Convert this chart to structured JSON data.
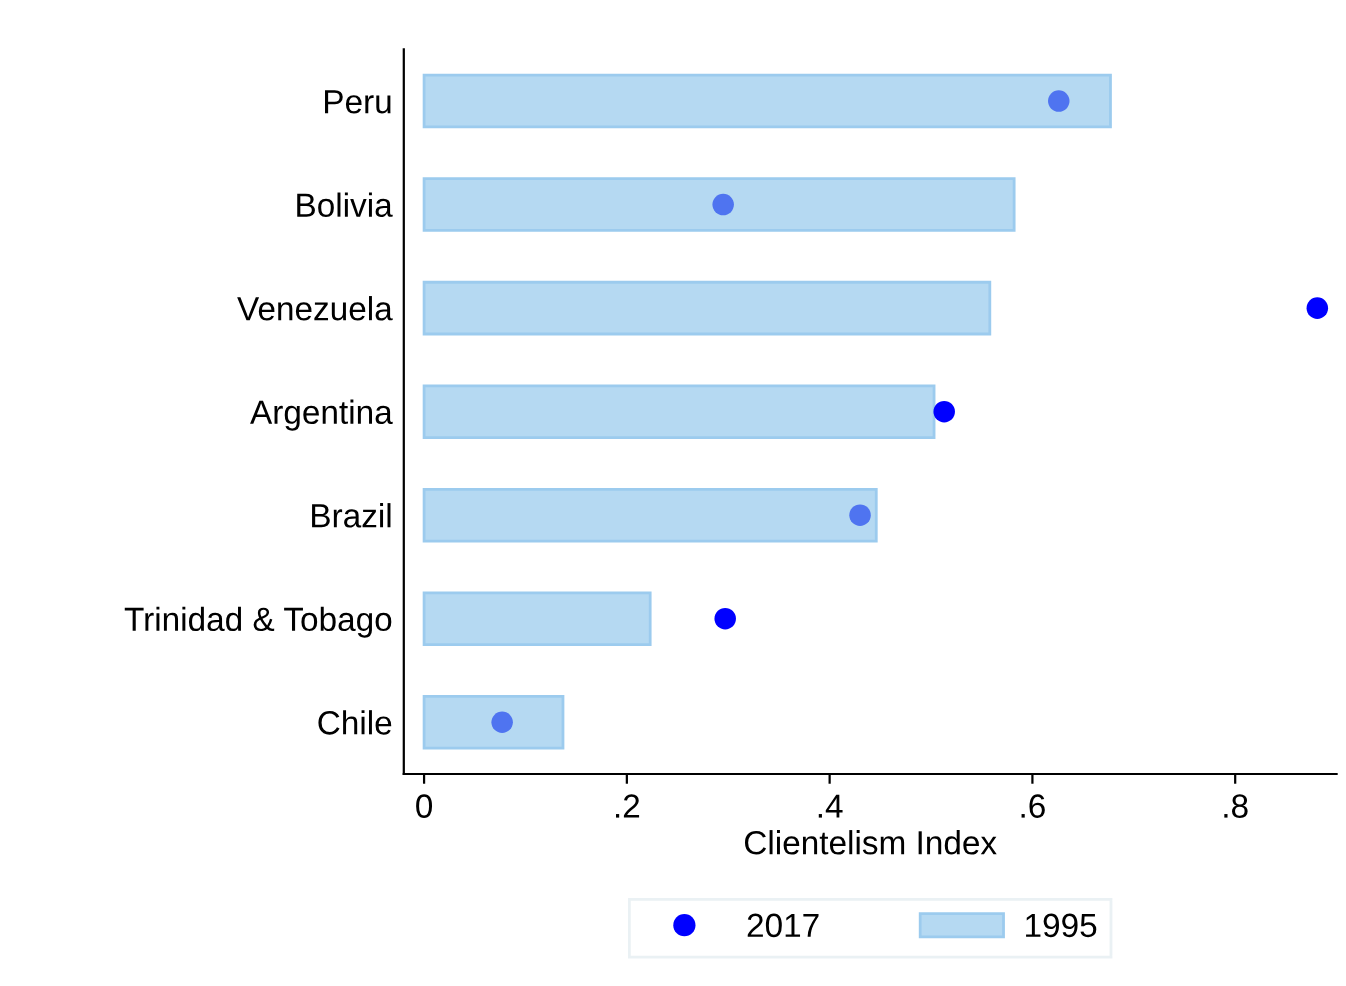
{
  "chart_data": {
    "type": "bar",
    "orientation": "horizontal",
    "xlabel": "Clientelism Index",
    "categories": [
      "Peru",
      "Bolivia",
      "Venezuela",
      "Argentina",
      "Brazil",
      "Trinidad & Tobago",
      "Chile"
    ],
    "series": [
      {
        "name": "2017",
        "type": "scatter",
        "color": "#0000ff",
        "colors": [
          "#4f74f0",
          "#4f74f0",
          "#0000ff",
          "#0000ff",
          "#4f74f0",
          "#0000ff",
          "#4f74f0"
        ],
        "values": [
          0.626,
          0.295,
          0.881,
          0.513,
          0.43,
          0.297,
          0.077
        ]
      },
      {
        "name": "1995",
        "type": "bar",
        "color": "#b5d9f2",
        "values": [
          0.677,
          0.582,
          0.558,
          0.503,
          0.446,
          0.223,
          0.137
        ]
      }
    ],
    "xlim": [
      -0.02,
      0.9
    ],
    "xticks": [
      0,
      {
        "value": 0.2,
        "label": ".2"
      },
      {
        "value": 0.4,
        "label": ".4"
      },
      {
        "value": 0.6,
        "label": ".6"
      },
      {
        "value": 0.8,
        "label": ".8"
      }
    ],
    "grid": false,
    "legend": "bottom",
    "marker": "circle"
  }
}
